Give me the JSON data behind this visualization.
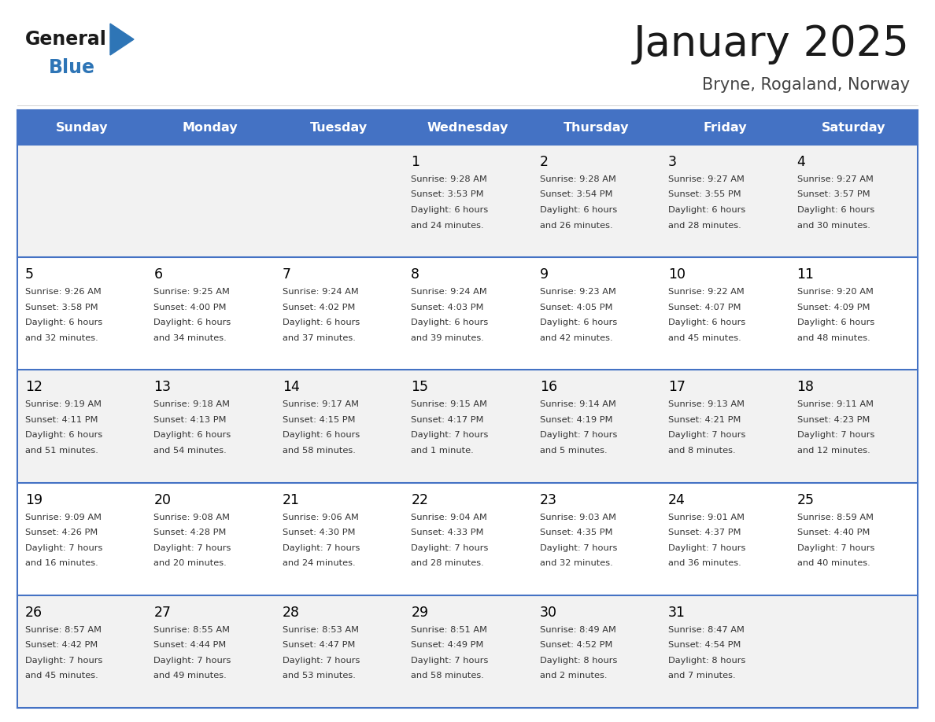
{
  "title": "January 2025",
  "subtitle": "Bryne, Rogaland, Norway",
  "days_of_week": [
    "Sunday",
    "Monday",
    "Tuesday",
    "Wednesday",
    "Thursday",
    "Friday",
    "Saturday"
  ],
  "header_bg": "#4472C4",
  "header_text": "#FFFFFF",
  "row_bg_odd": "#F2F2F2",
  "row_bg_even": "#FFFFFF",
  "row_border": "#4472C4",
  "cell_text_color": "#333333",
  "day_num_color": "#000000",
  "calendar": [
    [
      null,
      null,
      null,
      {
        "day": 1,
        "sunrise": "9:28 AM",
        "sunset": "3:53 PM",
        "daylight": "6 hours and 24 minutes."
      },
      {
        "day": 2,
        "sunrise": "9:28 AM",
        "sunset": "3:54 PM",
        "daylight": "6 hours and 26 minutes."
      },
      {
        "day": 3,
        "sunrise": "9:27 AM",
        "sunset": "3:55 PM",
        "daylight": "6 hours and 28 minutes."
      },
      {
        "day": 4,
        "sunrise": "9:27 AM",
        "sunset": "3:57 PM",
        "daylight": "6 hours and 30 minutes."
      }
    ],
    [
      {
        "day": 5,
        "sunrise": "9:26 AM",
        "sunset": "3:58 PM",
        "daylight": "6 hours and 32 minutes."
      },
      {
        "day": 6,
        "sunrise": "9:25 AM",
        "sunset": "4:00 PM",
        "daylight": "6 hours and 34 minutes."
      },
      {
        "day": 7,
        "sunrise": "9:24 AM",
        "sunset": "4:02 PM",
        "daylight": "6 hours and 37 minutes."
      },
      {
        "day": 8,
        "sunrise": "9:24 AM",
        "sunset": "4:03 PM",
        "daylight": "6 hours and 39 minutes."
      },
      {
        "day": 9,
        "sunrise": "9:23 AM",
        "sunset": "4:05 PM",
        "daylight": "6 hours and 42 minutes."
      },
      {
        "day": 10,
        "sunrise": "9:22 AM",
        "sunset": "4:07 PM",
        "daylight": "6 hours and 45 minutes."
      },
      {
        "day": 11,
        "sunrise": "9:20 AM",
        "sunset": "4:09 PM",
        "daylight": "6 hours and 48 minutes."
      }
    ],
    [
      {
        "day": 12,
        "sunrise": "9:19 AM",
        "sunset": "4:11 PM",
        "daylight": "6 hours and 51 minutes."
      },
      {
        "day": 13,
        "sunrise": "9:18 AM",
        "sunset": "4:13 PM",
        "daylight": "6 hours and 54 minutes."
      },
      {
        "day": 14,
        "sunrise": "9:17 AM",
        "sunset": "4:15 PM",
        "daylight": "6 hours and 58 minutes."
      },
      {
        "day": 15,
        "sunrise": "9:15 AM",
        "sunset": "4:17 PM",
        "daylight": "7 hours and 1 minute."
      },
      {
        "day": 16,
        "sunrise": "9:14 AM",
        "sunset": "4:19 PM",
        "daylight": "7 hours and 5 minutes."
      },
      {
        "day": 17,
        "sunrise": "9:13 AM",
        "sunset": "4:21 PM",
        "daylight": "7 hours and 8 minutes."
      },
      {
        "day": 18,
        "sunrise": "9:11 AM",
        "sunset": "4:23 PM",
        "daylight": "7 hours and 12 minutes."
      }
    ],
    [
      {
        "day": 19,
        "sunrise": "9:09 AM",
        "sunset": "4:26 PM",
        "daylight": "7 hours and 16 minutes."
      },
      {
        "day": 20,
        "sunrise": "9:08 AM",
        "sunset": "4:28 PM",
        "daylight": "7 hours and 20 minutes."
      },
      {
        "day": 21,
        "sunrise": "9:06 AM",
        "sunset": "4:30 PM",
        "daylight": "7 hours and 24 minutes."
      },
      {
        "day": 22,
        "sunrise": "9:04 AM",
        "sunset": "4:33 PM",
        "daylight": "7 hours and 28 minutes."
      },
      {
        "day": 23,
        "sunrise": "9:03 AM",
        "sunset": "4:35 PM",
        "daylight": "7 hours and 32 minutes."
      },
      {
        "day": 24,
        "sunrise": "9:01 AM",
        "sunset": "4:37 PM",
        "daylight": "7 hours and 36 minutes."
      },
      {
        "day": 25,
        "sunrise": "8:59 AM",
        "sunset": "4:40 PM",
        "daylight": "7 hours and 40 minutes."
      }
    ],
    [
      {
        "day": 26,
        "sunrise": "8:57 AM",
        "sunset": "4:42 PM",
        "daylight": "7 hours and 45 minutes."
      },
      {
        "day": 27,
        "sunrise": "8:55 AM",
        "sunset": "4:44 PM",
        "daylight": "7 hours and 49 minutes."
      },
      {
        "day": 28,
        "sunrise": "8:53 AM",
        "sunset": "4:47 PM",
        "daylight": "7 hours and 53 minutes."
      },
      {
        "day": 29,
        "sunrise": "8:51 AM",
        "sunset": "4:49 PM",
        "daylight": "7 hours and 58 minutes."
      },
      {
        "day": 30,
        "sunrise": "8:49 AM",
        "sunset": "4:52 PM",
        "daylight": "8 hours and 2 minutes."
      },
      {
        "day": 31,
        "sunrise": "8:47 AM",
        "sunset": "4:54 PM",
        "daylight": "8 hours and 7 minutes."
      },
      null
    ]
  ],
  "logo_general_color": "#1a1a1a",
  "logo_blue_color": "#2E75B6",
  "title_color": "#1a1a1a",
  "subtitle_color": "#444444",
  "fig_width": 11.88,
  "fig_height": 9.18,
  "dpi": 100
}
